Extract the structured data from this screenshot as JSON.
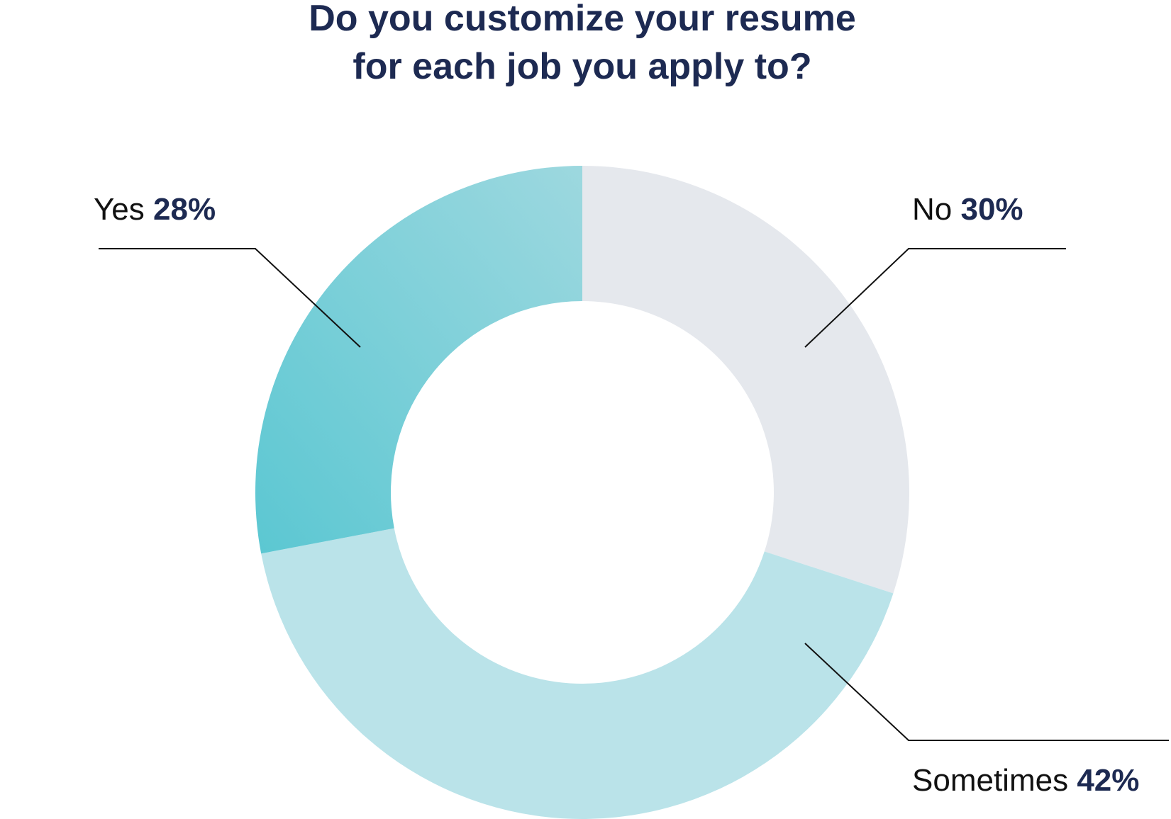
{
  "chart_data": {
    "type": "pie",
    "donut": true,
    "title": [
      "Do you customize your resume",
      "for each job you apply to?"
    ],
    "slices": [
      {
        "label": "No",
        "value": 30,
        "value_label": "30%",
        "color": "#e5e8ed"
      },
      {
        "label": "Sometimes",
        "value": 42,
        "value_label": "42%",
        "color": "#bae3e9"
      },
      {
        "label": "Yes",
        "value": 28,
        "value_label": "28%",
        "color_start": "#5bc7d2",
        "color_end": "#9dd8df"
      }
    ]
  }
}
